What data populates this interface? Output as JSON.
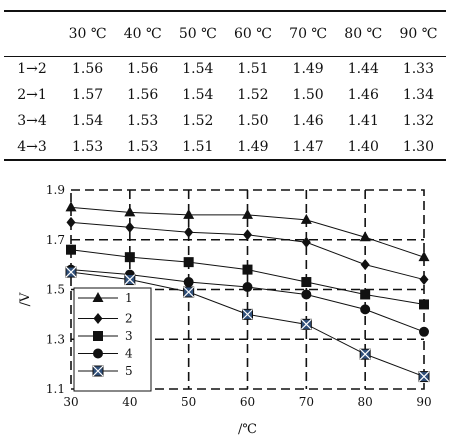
{
  "table": {
    "headers": [
      "",
      "30 ℃",
      "40 ℃",
      "50 ℃",
      "60 ℃",
      "70 ℃",
      "80 ℃",
      "90 ℃"
    ],
    "rows": [
      {
        "label": "1→2",
        "values": [
          "1.56",
          "1.56",
          "1.54",
          "1.51",
          "1.49",
          "1.44",
          "1.33"
        ]
      },
      {
        "label": "2→1",
        "values": [
          "1.57",
          "1.56",
          "1.54",
          "1.52",
          "1.50",
          "1.46",
          "1.34"
        ]
      },
      {
        "label": "3→4",
        "values": [
          "1.54",
          "1.53",
          "1.52",
          "1.50",
          "1.46",
          "1.41",
          "1.32"
        ]
      },
      {
        "label": "4→3",
        "values": [
          "1.53",
          "1.53",
          "1.51",
          "1.49",
          "1.47",
          "1.40",
          "1.30"
        ]
      }
    ]
  },
  "chart_data": {
    "type": "line",
    "xlabel": "/℃",
    "ylabel": "/V",
    "xlim": [
      30,
      90
    ],
    "ylim": [
      1.1,
      1.9
    ],
    "xticks": [
      "30",
      "40",
      "50",
      "60",
      "70",
      "80",
      "90"
    ],
    "yticks": [
      "1.1",
      "1.3",
      "1.5",
      "1.7",
      "1.9"
    ],
    "legend_position": "bottom-left",
    "grid": "dashed",
    "series": [
      {
        "name": "1",
        "marker": "triangle",
        "x": [
          30,
          40,
          50,
          60,
          70,
          80,
          90
        ],
        "values": [
          1.83,
          1.81,
          1.8,
          1.8,
          1.78,
          1.71,
          1.63
        ]
      },
      {
        "name": "2",
        "marker": "diamond",
        "x": [
          30,
          40,
          50,
          60,
          70,
          80,
          90
        ],
        "values": [
          1.77,
          1.75,
          1.73,
          1.72,
          1.69,
          1.6,
          1.54
        ]
      },
      {
        "name": "3",
        "marker": "square",
        "x": [
          30,
          40,
          50,
          60,
          70,
          80,
          90
        ],
        "values": [
          1.66,
          1.63,
          1.61,
          1.58,
          1.53,
          1.48,
          1.44
        ]
      },
      {
        "name": "4",
        "marker": "circle",
        "x": [
          30,
          40,
          50,
          60,
          70,
          80,
          90
        ],
        "values": [
          1.58,
          1.56,
          1.53,
          1.51,
          1.48,
          1.42,
          1.33
        ]
      },
      {
        "name": "5",
        "marker": "xsquare",
        "x": [
          30,
          40,
          50,
          60,
          70,
          80,
          90
        ],
        "values": [
          1.57,
          1.54,
          1.49,
          1.4,
          1.36,
          1.24,
          1.15
        ]
      }
    ]
  }
}
